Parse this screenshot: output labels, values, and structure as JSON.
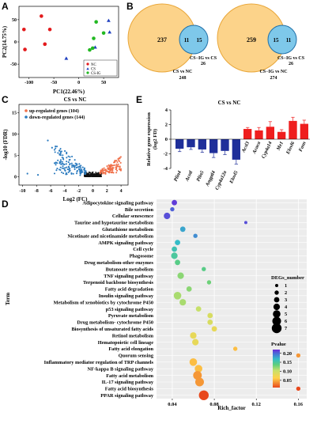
{
  "panels": {
    "A": "A",
    "B": "B",
    "C": "C",
    "D": "D",
    "E": "E"
  },
  "panel_a": {
    "chart_data": {
      "type": "scatter",
      "xlabel": "PC1(22.46%)",
      "ylabel": "PC2(14.75%)",
      "xlim": [
        -120,
        80
      ],
      "ylim": [
        -80,
        80
      ],
      "xticks": [
        -100,
        -50,
        0,
        50
      ],
      "yticks": [
        -50,
        0,
        50
      ],
      "grid": false,
      "legend_position": "bottom-right",
      "series": [
        {
          "name": "NC",
          "color": "#e31a1c",
          "shape": "circle",
          "points": [
            [
              -110,
              28
            ],
            [
              -75,
              58
            ],
            [
              -58,
              28
            ],
            [
              -68,
              -5
            ],
            [
              -108,
              -17
            ]
          ]
        },
        {
          "name": "CS",
          "color": "#1f3fbf",
          "shape": "triangle",
          "points": [
            [
              60,
              48
            ],
            [
              62,
              22
            ],
            [
              33,
              -12
            ],
            [
              -25,
              -37
            ]
          ]
        },
        {
          "name": "CS-IG",
          "color": "#22b822",
          "shape": "circle",
          "points": [
            [
              35,
              45
            ],
            [
              50,
              20
            ],
            [
              30,
              8
            ],
            [
              22,
              -18
            ],
            [
              28,
              -14
            ]
          ]
        }
      ]
    }
  },
  "panel_b": {
    "venns": [
      {
        "left_only": "237",
        "overlap": "11",
        "right_only": "15",
        "label_top_line1": "CS−IG vs CS",
        "label_top_line2": "26",
        "label_bottom_line1": "CS vs NC",
        "label_bottom_line2": "248"
      },
      {
        "left_only": "259",
        "overlap": "15",
        "right_only": "11",
        "label_top_line1": "CS−IG vs CS",
        "label_top_line2": "26",
        "label_bottom_line1": "CS−IG vs NC",
        "label_bottom_line2": "274"
      }
    ]
  },
  "panel_c": {
    "chart_data": {
      "type": "scatter",
      "title": "CS vs NC",
      "xlabel": "Log2 (FC)",
      "ylabel": "-log10 (FDR)",
      "xlim": [
        -10.5,
        5
      ],
      "ylim": [
        -2,
        17
      ],
      "xticks": [
        -10,
        -8,
        -6,
        -4,
        -2,
        0,
        2,
        4
      ],
      "yticks": [
        0,
        5,
        10,
        15
      ],
      "legend": [
        "up-regulated genes (104)",
        "down-regulated genes (144)"
      ],
      "legend_colors": [
        "#f06f48",
        "#2b7bbf"
      ],
      "legend_position": "top-left"
    }
  },
  "panel_d": {
    "chart_data": {
      "type": "scatter",
      "xlabel": "Rich_factor",
      "ylabel": "Term",
      "xlim": [
        0.025,
        0.168
      ],
      "xticks": [
        0.04,
        0.08,
        0.12,
        0.16
      ],
      "xtick_labels": [
        "0.04",
        "0.08",
        "0.12",
        "0.16"
      ],
      "grid": true,
      "terms": [
        "Adipocytokine signaling pathway",
        "Bile secretion",
        "Cellular senescence",
        "Taurine and hypotaurine metabolism",
        "Glutathione metabolism",
        "Nicotinate and nicotinamide metabolism",
        "AMPK signaling pathway",
        "Cell cycle",
        "Phagosome",
        "Drug metabolism-other enzymes",
        "Butanoate metabolism",
        "TNF signaling pathway",
        "Terpenoid backbone biosynthesis",
        "Fatty acid degradation",
        "Insulin signaling pathway",
        "Metabolism of xenobiotics by cytochrome P450",
        "p53 signaling pathway",
        "Pyruvate metabolism",
        "Drug metabolism- cytochrome P450",
        "Biosynthesis of unsaturated fatty acids",
        "Retinol metabolism",
        "Hematopoietic cell lineage",
        "Fatty acid elongation",
        "Quorum sensing",
        "Inflammatory mediator regulation of TRP channels",
        "NF-kappa B signaling pathway",
        "Fatty acid metabolism",
        "IL-17 signaling pathway",
        "Fatty acid biosynthesis",
        "PPAR signaling pathway"
      ],
      "rich_factor": [
        0.042,
        0.04,
        0.035,
        0.11,
        0.05,
        0.062,
        0.045,
        0.042,
        0.042,
        0.045,
        0.07,
        0.048,
        0.075,
        0.056,
        0.045,
        0.05,
        0.065,
        0.076,
        0.076,
        0.08,
        0.06,
        0.062,
        0.1,
        0.16,
        0.06,
        0.065,
        0.064,
        0.066,
        0.16,
        0.07
      ],
      "degs_number": [
        3,
        2,
        4,
        1,
        3,
        2,
        3,
        3,
        4,
        3,
        2,
        4,
        2,
        3,
        5,
        4,
        3,
        3,
        3,
        3,
        4,
        4,
        2,
        2,
        5,
        5,
        6,
        6,
        2,
        7
      ],
      "pvalue": [
        0.21,
        0.19,
        0.2,
        0.2,
        0.16,
        0.17,
        0.15,
        0.14,
        0.13,
        0.12,
        0.12,
        0.1,
        0.11,
        0.1,
        0.09,
        0.09,
        0.08,
        0.07,
        0.07,
        0.06,
        0.06,
        0.06,
        0.04,
        0.03,
        0.04,
        0.04,
        0.03,
        0.03,
        0.01,
        0.01
      ],
      "size_legend_title": "DEGs_number",
      "size_legend_values": [
        "1",
        "2",
        "3",
        "4",
        "5",
        "6",
        "7"
      ],
      "color_legend_title": "Pvalue",
      "color_legend_ticks": [
        "0.20",
        "0.15",
        "0.10",
        "0.05"
      ],
      "color_scale": [
        "#e8481c",
        "#ffd24a",
        "#c7e06a",
        "#5ecf7c",
        "#34bcc8",
        "#4a6ad8",
        "#6a2ad8"
      ]
    }
  },
  "panel_e": {
    "chart_data": {
      "type": "bar",
      "title": "CS vs NC",
      "ylabel_line1": "Relative gene expression",
      "ylabel_line2": "(log2 FD)",
      "ylim": [
        -4,
        4
      ],
      "yticks": [
        -4,
        -2,
        0,
        2,
        4
      ],
      "categories": [
        "Plin4",
        "Acotl",
        "Plin5",
        "Angptl4",
        "Cyp4a12a",
        "Elovl5",
        "Acsl3",
        "Acaca",
        "Cyp4a14",
        "Me1",
        "Elovl6",
        "Fasn"
      ],
      "values": [
        -1.3,
        -1.1,
        -1.4,
        -1.9,
        -1.6,
        -2.8,
        1.4,
        1.2,
        1.7,
        1.0,
        2.5,
        2.1
      ],
      "errors": [
        0.4,
        0.3,
        0.4,
        0.6,
        0.5,
        0.6,
        0.2,
        0.4,
        0.7,
        0.3,
        0.5,
        0.5
      ],
      "colors": {
        "down": "#1f2f9a",
        "up": "#ef1e1e"
      }
    }
  }
}
